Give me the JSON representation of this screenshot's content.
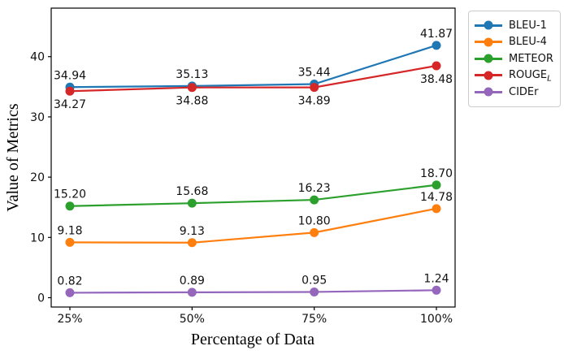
{
  "chart_data": {
    "type": "line",
    "title": "",
    "xlabel": "Percentage of Data",
    "ylabel": "Value of Metrics",
    "categories": [
      "25%",
      "50%",
      "75%",
      "100%"
    ],
    "y_ticks": [
      0,
      10,
      20,
      30,
      40
    ],
    "ylim": [
      -1.55,
      48.05
    ],
    "grid": false,
    "legend_position": "outside-upper-right",
    "marker": "circle",
    "series": [
      {
        "name": "BLEU-1",
        "sub": "",
        "color": "#1f77b4",
        "values": [
          34.94,
          35.13,
          35.44,
          41.87
        ],
        "label_position": "above"
      },
      {
        "name": "BLEU-4",
        "sub": "",
        "color": "#ff7f0e",
        "values": [
          9.18,
          9.13,
          10.8,
          14.78
        ],
        "label_position": "above"
      },
      {
        "name": "METEOR",
        "sub": "",
        "color": "#2ca02c",
        "values": [
          15.2,
          15.68,
          16.23,
          18.7
        ],
        "label_position": "above"
      },
      {
        "name": "ROUGE",
        "sub": "L",
        "color": "#d62728",
        "values": [
          34.27,
          34.88,
          34.89,
          38.48
        ],
        "label_position": "below"
      },
      {
        "name": "CIDEr",
        "sub": "",
        "color": "#9467bd",
        "values": [
          0.82,
          0.89,
          0.95,
          1.24
        ],
        "label_position": "above"
      }
    ]
  }
}
